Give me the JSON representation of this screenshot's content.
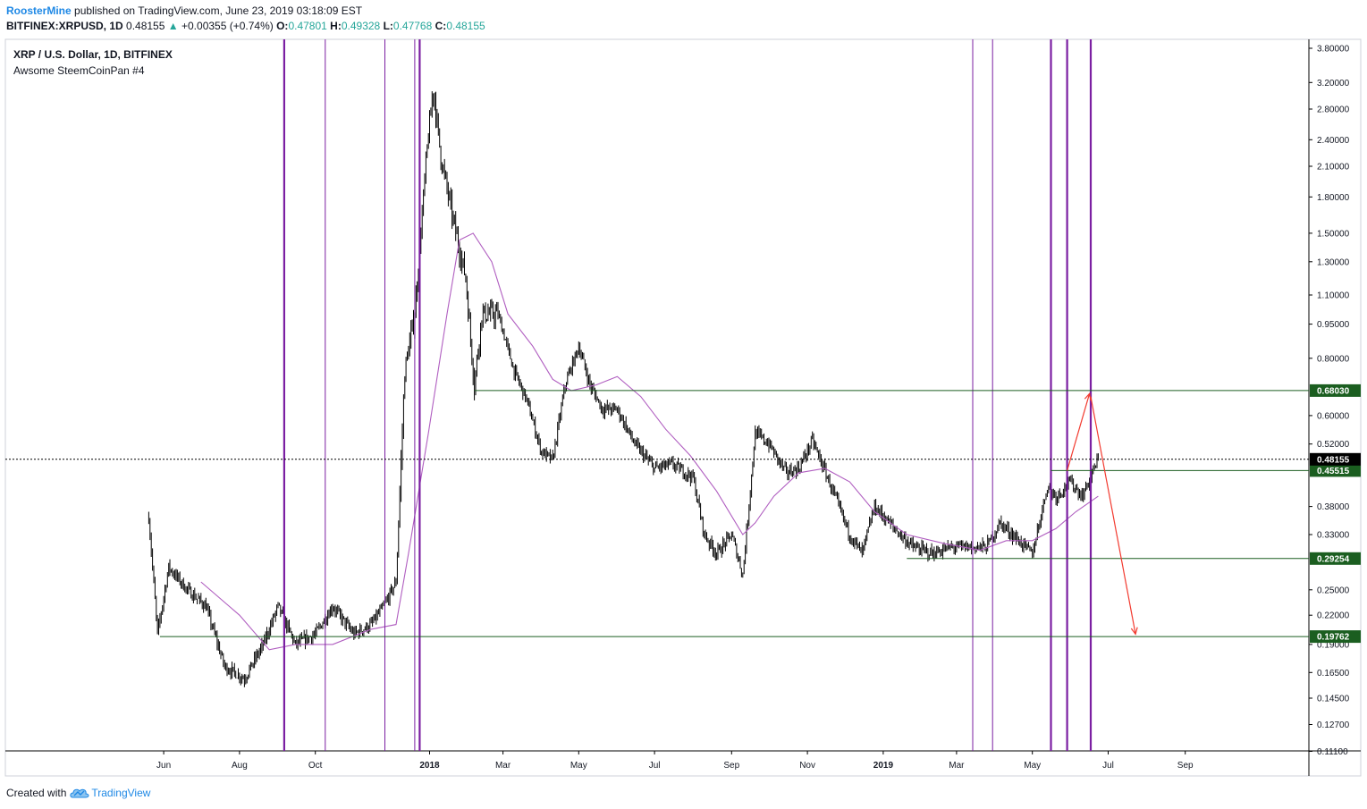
{
  "header": {
    "author": "RoosterMine",
    "published": "published on TradingView.com, June 23, 2019 03:18:09 EST",
    "symbol": "BITFINEX:XRPUSD, 1D",
    "last": "0.48155",
    "change": "+0.00355 (+0.74%)",
    "o_label": "O:",
    "o_value": "0.47801",
    "h_label": "H:",
    "h_value": "0.49328",
    "l_label": "L:",
    "l_value": "0.47768",
    "c_label": "C:",
    "c_value": "0.48155"
  },
  "chart_title": "XRP / U.S. Dollar, 1D, BITFINEX",
  "chart_subtitle": "Awsome SteemCoinPan #4",
  "footer": {
    "created_with": "Created with",
    "brand": "TradingView"
  },
  "colors": {
    "candle": "#000000",
    "ma": "#b05ec0",
    "vline": "#7b1fa2",
    "hline": "#1b5e20",
    "arrow": "#f23a2f",
    "last_price_bg": "#000000",
    "level_bg": "#1b5e20"
  },
  "chart_data": {
    "type": "candlestick",
    "log_scale": true,
    "y_ticks": [
      "3.80000",
      "3.20000",
      "2.80000",
      "2.40000",
      "2.10000",
      "1.80000",
      "1.50000",
      "1.30000",
      "1.10000",
      "0.95000",
      "0.80000",
      "0.68030",
      "0.60000",
      "0.52000",
      "0.48155",
      "0.45515",
      "0.38000",
      "0.33000",
      "0.29254",
      "0.25000",
      "0.22000",
      "0.19762",
      "0.19000",
      "0.16500",
      "0.14500",
      "0.12700",
      "0.11100"
    ],
    "x_ticks": [
      "Jun",
      "Aug",
      "Oct",
      "2018",
      "Mar",
      "May",
      "Jul",
      "Sep",
      "Nov",
      "2019",
      "Mar",
      "May",
      "Jul",
      "Sep"
    ],
    "horizontal_levels": [
      {
        "label": "0.68030",
        "value": 0.6803
      },
      {
        "label": "0.45515",
        "value": 0.45515
      },
      {
        "label": "0.29254",
        "value": 0.29254
      },
      {
        "label": "0.19762",
        "value": 0.19762
      }
    ],
    "last_price": {
      "label": "0.48155",
      "value": 0.48155
    },
    "vertical_line_dates": [
      "2017-09-06",
      "2017-10-09",
      "2017-11-26",
      "2017-12-20",
      "2017-12-24",
      "2019-03-14",
      "2019-03-30",
      "2019-05-16",
      "2019-05-29",
      "2019-06-17"
    ],
    "close_path": [
      [
        "2017-05-20",
        0.36
      ],
      [
        "2017-05-27",
        0.2
      ],
      [
        "2017-06-05",
        0.28
      ],
      [
        "2017-06-20",
        0.25
      ],
      [
        "2017-07-05",
        0.23
      ],
      [
        "2017-07-20",
        0.17
      ],
      [
        "2017-08-05",
        0.16
      ],
      [
        "2017-08-20",
        0.19
      ],
      [
        "2017-09-01",
        0.23
      ],
      [
        "2017-09-15",
        0.19
      ],
      [
        "2017-10-01",
        0.2
      ],
      [
        "2017-10-15",
        0.23
      ],
      [
        "2017-11-01",
        0.2
      ],
      [
        "2017-11-15",
        0.21
      ],
      [
        "2017-11-25",
        0.23
      ],
      [
        "2017-12-05",
        0.26
      ],
      [
        "2017-12-12",
        0.75
      ],
      [
        "2017-12-20",
        1.0
      ],
      [
        "2017-12-30",
        2.3
      ],
      [
        "2018-01-04",
        3.1
      ],
      [
        "2018-01-10",
        2.2
      ],
      [
        "2018-01-20",
        1.6
      ],
      [
        "2018-01-30",
        1.2
      ],
      [
        "2018-02-06",
        0.7
      ],
      [
        "2018-02-12",
        1.0
      ],
      [
        "2018-02-25",
        1.0
      ],
      [
        "2018-03-10",
        0.75
      ],
      [
        "2018-03-20",
        0.65
      ],
      [
        "2018-04-01",
        0.5
      ],
      [
        "2018-04-10",
        0.48
      ],
      [
        "2018-04-20",
        0.7
      ],
      [
        "2018-05-01",
        0.85
      ],
      [
        "2018-05-10",
        0.7
      ],
      [
        "2018-05-20",
        0.62
      ],
      [
        "2018-06-01",
        0.62
      ],
      [
        "2018-06-15",
        0.52
      ],
      [
        "2018-07-01",
        0.46
      ],
      [
        "2018-07-15",
        0.47
      ],
      [
        "2018-08-01",
        0.44
      ],
      [
        "2018-08-10",
        0.33
      ],
      [
        "2018-08-20",
        0.3
      ],
      [
        "2018-09-01",
        0.33
      ],
      [
        "2018-09-10",
        0.27
      ],
      [
        "2018-09-20",
        0.55
      ],
      [
        "2018-10-01",
        0.52
      ],
      [
        "2018-10-15",
        0.45
      ],
      [
        "2018-10-25",
        0.46
      ],
      [
        "2018-11-05",
        0.53
      ],
      [
        "2018-11-20",
        0.42
      ],
      [
        "2018-12-05",
        0.33
      ],
      [
        "2018-12-15",
        0.3
      ],
      [
        "2018-12-25",
        0.38
      ],
      [
        "2019-01-10",
        0.34
      ],
      [
        "2019-01-25",
        0.31
      ],
      [
        "2019-02-10",
        0.3
      ],
      [
        "2019-02-25",
        0.31
      ],
      [
        "2019-03-10",
        0.31
      ],
      [
        "2019-03-25",
        0.31
      ],
      [
        "2019-04-05",
        0.35
      ],
      [
        "2019-04-20",
        0.32
      ],
      [
        "2019-05-01",
        0.3
      ],
      [
        "2019-05-13",
        0.42
      ],
      [
        "2019-05-20",
        0.4
      ],
      [
        "2019-06-01",
        0.43
      ],
      [
        "2019-06-10",
        0.4
      ],
      [
        "2019-06-23",
        0.48155
      ]
    ],
    "ma_path": [
      [
        "2017-07-01",
        0.26
      ],
      [
        "2017-08-01",
        0.22
      ],
      [
        "2017-08-25",
        0.185
      ],
      [
        "2017-09-15",
        0.19
      ],
      [
        "2017-10-15",
        0.19
      ],
      [
        "2017-11-15",
        0.205
      ],
      [
        "2017-12-05",
        0.21
      ],
      [
        "2017-12-15",
        0.3
      ],
      [
        "2017-12-31",
        0.55
      ],
      [
        "2018-01-15",
        1.0
      ],
      [
        "2018-01-25",
        1.45
      ],
      [
        "2018-02-05",
        1.5
      ],
      [
        "2018-02-20",
        1.3
      ],
      [
        "2018-03-05",
        1.0
      ],
      [
        "2018-03-25",
        0.85
      ],
      [
        "2018-04-10",
        0.72
      ],
      [
        "2018-04-25",
        0.68
      ],
      [
        "2018-05-15",
        0.7
      ],
      [
        "2018-06-01",
        0.73
      ],
      [
        "2018-06-20",
        0.66
      ],
      [
        "2018-07-10",
        0.56
      ],
      [
        "2018-07-30",
        0.49
      ],
      [
        "2018-08-20",
        0.41
      ],
      [
        "2018-09-10",
        0.33
      ],
      [
        "2018-09-20",
        0.35
      ],
      [
        "2018-10-05",
        0.4
      ],
      [
        "2018-10-25",
        0.45
      ],
      [
        "2018-11-15",
        0.46
      ],
      [
        "2018-12-05",
        0.43
      ],
      [
        "2018-12-25",
        0.37
      ],
      [
        "2019-01-20",
        0.33
      ],
      [
        "2019-02-20",
        0.315
      ],
      [
        "2019-03-20",
        0.305
      ],
      [
        "2019-04-10",
        0.32
      ],
      [
        "2019-05-01",
        0.32
      ],
      [
        "2019-05-20",
        0.34
      ],
      [
        "2019-06-05",
        0.37
      ],
      [
        "2019-06-23",
        0.4
      ]
    ],
    "arrows": [
      {
        "from": [
          "2019-05-29",
          0.455
        ],
        "to": [
          "2019-06-16",
          0.67
        ]
      },
      {
        "from": [
          "2019-06-17",
          0.66
        ],
        "to": [
          "2019-07-23",
          0.2
        ]
      }
    ]
  }
}
